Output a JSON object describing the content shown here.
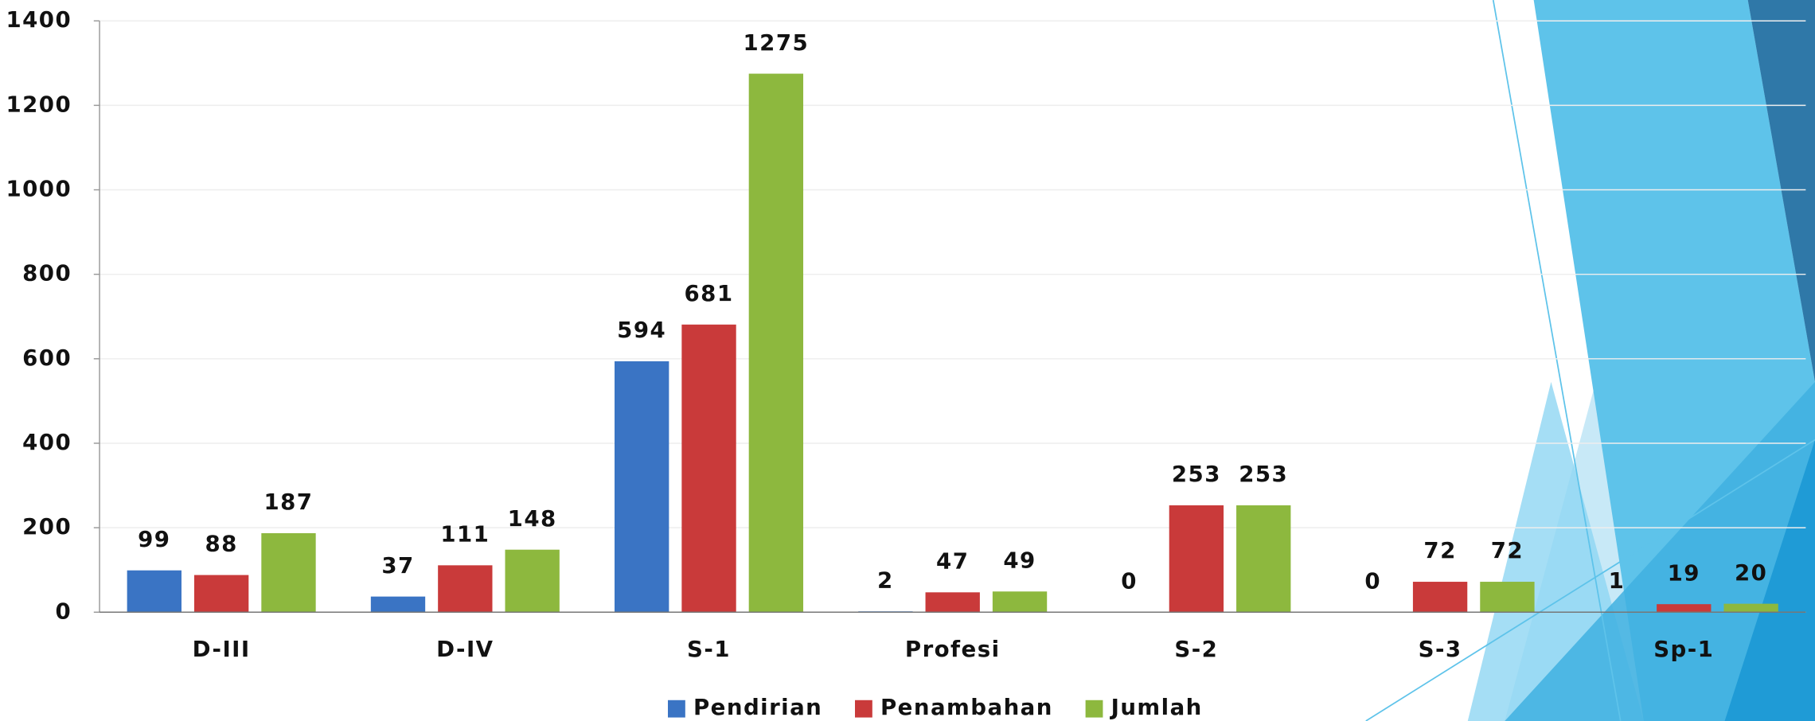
{
  "chart_data": {
    "type": "bar",
    "categories": [
      "D-III",
      "D-IV",
      "S-1",
      "Profesi",
      "S-2",
      "S-3",
      "Sp-1"
    ],
    "series": [
      {
        "name": "Pendirian",
        "color": "#3a74c4",
        "values": [
          99,
          37,
          594,
          2,
          0,
          0,
          1
        ]
      },
      {
        "name": "Penambahan",
        "color": "#c93a3a",
        "values": [
          88,
          111,
          681,
          47,
          253,
          72,
          19
        ]
      },
      {
        "name": "Jumlah",
        "color": "#8db83e",
        "values": [
          187,
          148,
          1275,
          49,
          253,
          72,
          20
        ]
      }
    ],
    "ylim": [
      0,
      1400
    ],
    "yticks": [
      0,
      200,
      400,
      600,
      800,
      1000,
      1200,
      1400
    ],
    "grid": true,
    "legend": "bottom"
  }
}
